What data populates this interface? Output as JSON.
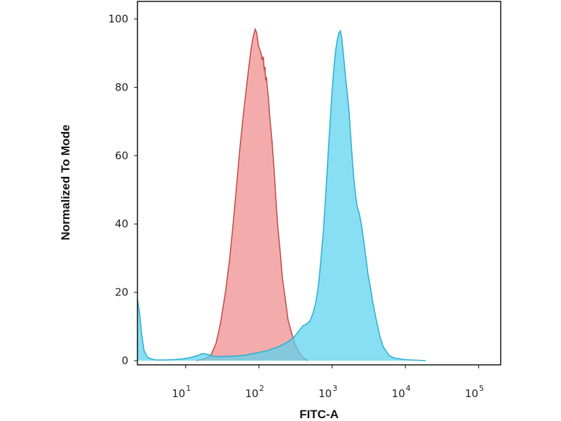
{
  "chart_data": {
    "type": "area",
    "xscale": "log",
    "xlim": [
      2.2,
      200000
    ],
    "ylim": [
      0,
      100
    ],
    "xlabel": "FITC-A",
    "ylabel": "Normalized To Mode",
    "grid": false,
    "y_ticks": [
      {
        "value": 0,
        "label": "0"
      },
      {
        "value": 20,
        "label": "20"
      },
      {
        "value": 40,
        "label": "40"
      },
      {
        "value": 60,
        "label": "60"
      },
      {
        "value": 80,
        "label": "80"
      },
      {
        "value": 100,
        "label": "100"
      }
    ],
    "x_ticks": [
      {
        "value": 10,
        "base": "10",
        "exp": "1"
      },
      {
        "value": 100,
        "base": "10",
        "exp": "2"
      },
      {
        "value": 1000,
        "base": "10",
        "exp": "3"
      },
      {
        "value": 10000,
        "base": "10",
        "exp": "4"
      },
      {
        "value": 100000,
        "base": "10",
        "exp": "5"
      }
    ],
    "series": [
      {
        "fill": "#f08a8a",
        "stroke": "#c0504d",
        "x": [
          14,
          18,
          22,
          26,
          30,
          35,
          40,
          45,
          50,
          55,
          60,
          66,
          72,
          78,
          84,
          89,
          93,
          96,
          99,
          103,
          107,
          111,
          115,
          118,
          121,
          124,
          127,
          130,
          135,
          140,
          150,
          160,
          170,
          180,
          195,
          210,
          230,
          250,
          280,
          310,
          340,
          380,
          420,
          470
        ],
        "y": [
          0,
          0.5,
          1.5,
          5,
          11,
          20,
          30,
          41,
          52,
          62,
          70,
          78,
          85,
          91,
          95,
          97,
          96,
          94,
          92,
          91,
          90,
          88,
          89,
          85,
          86,
          82,
          83,
          80,
          77,
          72,
          65,
          57,
          48,
          40,
          32,
          24,
          18,
          12,
          8,
          5,
          3,
          1.5,
          0.5,
          0
        ]
      },
      {
        "fill": "#5ad2ee",
        "stroke": "#2fb1cf",
        "x": [
          2.2,
          2.35,
          2.5,
          2.7,
          3,
          3.5,
          4,
          5,
          7,
          9,
          11,
          13,
          15,
          17,
          20,
          23,
          27,
          32,
          40,
          50,
          65,
          80,
          100,
          130,
          160,
          200,
          250,
          300,
          350,
          400,
          450,
          500,
          550,
          600,
          650,
          700,
          760,
          820,
          880,
          940,
          1000,
          1060,
          1120,
          1180,
          1240,
          1300,
          1360,
          1420,
          1480,
          1540,
          1600,
          1700,
          1800,
          1900,
          2000,
          2100,
          2200,
          2350,
          2500,
          2700,
          2900,
          3100,
          3300,
          3600,
          4000,
          4500,
          5000,
          6000,
          7000,
          8500,
          10000,
          12000,
          15000,
          19000
        ],
        "y": [
          18,
          14,
          8,
          3,
          1,
          0.4,
          0.2,
          0.2,
          0.3,
          0.5,
          0.8,
          1.2,
          1.6,
          2.1,
          1.8,
          1.4,
          1.2,
          1.2,
          1.3,
          1.4,
          1.6,
          2.0,
          2.4,
          2.9,
          3.6,
          4.4,
          5.5,
          6.8,
          8.6,
          10.2,
          10.8,
          11.6,
          14,
          17,
          22,
          29,
          38,
          49,
          60,
          70,
          79,
          86,
          91,
          94,
          96,
          96.5,
          94,
          90,
          86,
          82,
          79,
          73,
          65,
          58,
          52,
          48,
          45,
          43,
          40,
          35,
          30,
          25,
          22,
          17,
          12,
          7,
          4,
          1.5,
          0.8,
          0.5,
          0.3,
          0.2,
          0.1,
          0
        ]
      }
    ]
  }
}
